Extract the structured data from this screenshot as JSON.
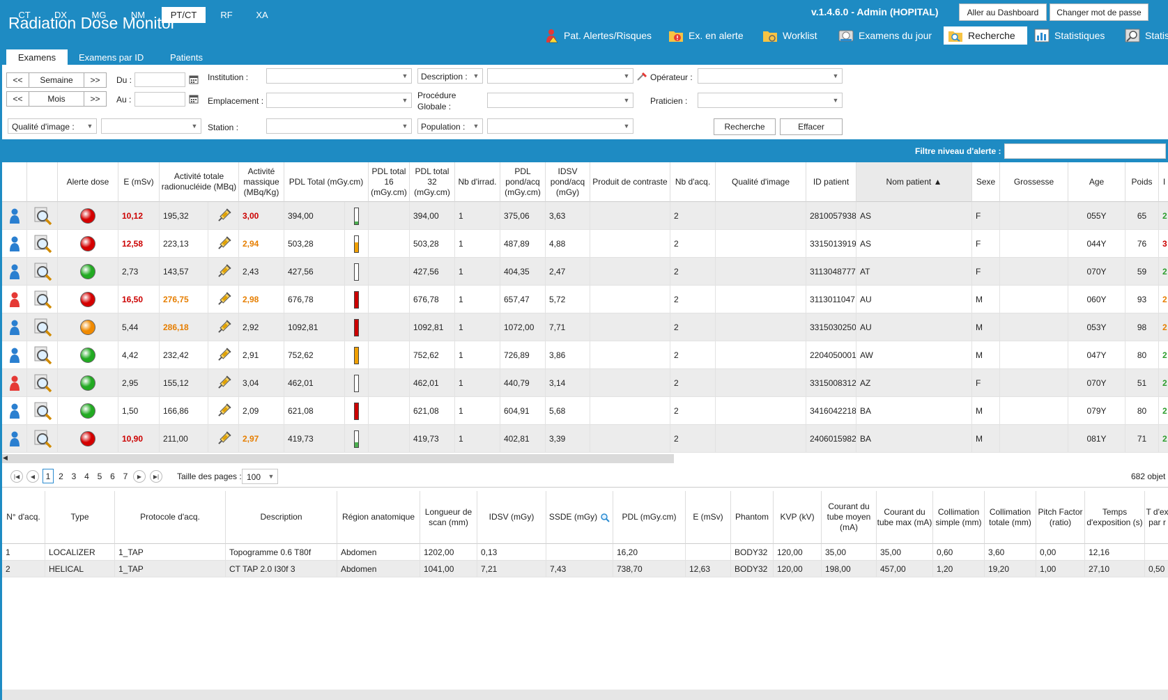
{
  "header": {
    "app_title": "Radiation Dose Monitor",
    "version": "v.1.4.6.0  -   Admin (HOPITAL)",
    "dashboard_button": "Aller au Dashboard",
    "password_button": "Changer mot de passe",
    "nav": [
      {
        "label": "Pat. Alertes/Risques",
        "icon": "patient-alert-icon"
      },
      {
        "label": "Ex. en alerte",
        "icon": "folder-alert-icon"
      },
      {
        "label": "Worklist",
        "icon": "folder-worklist-icon"
      },
      {
        "label": "Examens du jour",
        "icon": "scanner-icon"
      },
      {
        "label": "Recherche",
        "icon": "search-folder-icon",
        "active": true
      },
      {
        "label": "Statistiques",
        "icon": "stats-chart-icon"
      },
      {
        "label": "Statis",
        "icon": "stats-search-icon"
      }
    ]
  },
  "tabs": [
    "Examens",
    "Examens par ID",
    "Patients"
  ],
  "search": {
    "week_prev": "<<",
    "week_label": "Semaine",
    "week_next": ">>",
    "month_prev": "<<",
    "month_label": "Mois",
    "month_next": ">>",
    "du_label": "Du :",
    "au_label": "Au :",
    "institution_label": "Institution :",
    "emplacement_label": "Emplacement :",
    "station_label": "Station :",
    "description_label": "Description :",
    "procedure_label_1": "Procédure",
    "procedure_label_2": "Globale :",
    "population_label": "Population :",
    "operateur_label": "Opérateur :",
    "praticien_label": "Praticien :",
    "qualite_label": "Qualité d'image :",
    "recherche_button": "Recherche",
    "effacer_button": "Effacer"
  },
  "modalities": [
    "CT",
    "DX",
    "MG",
    "NM",
    "PT/CT",
    "RF",
    "XA"
  ],
  "active_modality": "PT/CT",
  "filter_label": "Filtre niveau d'alerte :",
  "grid": {
    "headers": [
      "",
      "",
      "Alerte dose",
      "E (mSv)",
      "Activité totale radionucléide (MBq)",
      "Activité massique (MBq/Kg)",
      "PDL Total (mGy.cm)",
      "PDL total 16 (mGy.cm)",
      "PDL total 32 (mGy.cm)",
      "Nb d'irrad.",
      "PDL pond/acq (mGy.cm)",
      "IDSV pond/acq (mGy)",
      "Produit de contraste",
      "Nb d'acq.",
      "Qualité d'image",
      "ID patient",
      "Nom patient ▲",
      "Sexe",
      "Grossesse",
      "Age",
      "Poids",
      "I"
    ],
    "rows": [
      {
        "patient": "blue",
        "alert": "#d40000",
        "e": "10,12",
        "e_cls": "red",
        "act": "195,32",
        "act_cls": "",
        "mass": "3,00",
        "mass_cls": "red",
        "pdl": "394,00",
        "bar": "#4caf50",
        "bar_fill": 0.15,
        "pdl32": "394,00",
        "irrad": "1",
        "pond": "375,06",
        "idsv": "3,63",
        "acq": "2",
        "id": "2810057938",
        "name": "AS",
        "sex": "F",
        "age": "055Y",
        "weight": "65",
        "extra": "2",
        "extra_cls": "green"
      },
      {
        "patient": "blue",
        "alert": "#d40000",
        "e": "12,58",
        "e_cls": "red",
        "act": "223,13",
        "act_cls": "",
        "mass": "2,94",
        "mass_cls": "org",
        "pdl": "503,28",
        "bar": "#f0a000",
        "bar_fill": 0.6,
        "pdl32": "503,28",
        "irrad": "1",
        "pond": "487,89",
        "idsv": "4,88",
        "acq": "2",
        "id": "3315013919",
        "name": "AS",
        "sex": "F",
        "age": "044Y",
        "weight": "76",
        "extra": "3",
        "extra_cls": "redtxt"
      },
      {
        "patient": "blue",
        "alert": "#22aa22",
        "e": "2,73",
        "e_cls": "",
        "act": "143,57",
        "act_cls": "",
        "mass": "2,43",
        "mass_cls": "",
        "pdl": "427,56",
        "bar": "#ffffff",
        "bar_fill": 0,
        "pdl32": "427,56",
        "irrad": "1",
        "pond": "404,35",
        "idsv": "2,47",
        "acq": "2",
        "id": "3113048777",
        "name": "AT",
        "sex": "F",
        "age": "070Y",
        "weight": "59",
        "extra": "2",
        "extra_cls": "green"
      },
      {
        "patient": "red",
        "alert": "#d40000",
        "e": "16,50",
        "e_cls": "red",
        "act": "276,75",
        "act_cls": "org",
        "mass": "2,98",
        "mass_cls": "org",
        "pdl": "676,78",
        "bar": "#cc0000",
        "bar_fill": 1,
        "pdl32": "676,78",
        "irrad": "1",
        "pond": "657,47",
        "idsv": "5,72",
        "acq": "2",
        "id": "3113011047",
        "name": "AU",
        "sex": "M",
        "age": "060Y",
        "weight": "93",
        "extra": "2",
        "extra_cls": "org"
      },
      {
        "patient": "blue",
        "alert": "#f08a00",
        "e": "5,44",
        "e_cls": "",
        "act": "286,18",
        "act_cls": "org",
        "mass": "2,92",
        "mass_cls": "",
        "pdl": "1092,81",
        "bar": "#cc0000",
        "bar_fill": 1,
        "pdl32": "1092,81",
        "irrad": "1",
        "pond": "1072,00",
        "idsv": "7,71",
        "acq": "2",
        "id": "3315030250",
        "name": "AU",
        "sex": "M",
        "age": "053Y",
        "weight": "98",
        "extra": "2",
        "extra_cls": "org"
      },
      {
        "patient": "blue",
        "alert": "#22aa22",
        "e": "4,42",
        "e_cls": "",
        "act": "232,42",
        "act_cls": "",
        "mass": "2,91",
        "mass_cls": "",
        "pdl": "752,62",
        "bar": "#f0a000",
        "bar_fill": 1,
        "pdl32": "752,62",
        "irrad": "1",
        "pond": "726,89",
        "idsv": "3,86",
        "acq": "2",
        "id": "2204050001",
        "name": "AW",
        "sex": "M",
        "age": "047Y",
        "weight": "80",
        "extra": "2",
        "extra_cls": "green"
      },
      {
        "patient": "red",
        "alert": "#22aa22",
        "e": "2,95",
        "e_cls": "",
        "act": "155,12",
        "act_cls": "",
        "mass": "3,04",
        "mass_cls": "",
        "pdl": "462,01",
        "bar": "#ffffff",
        "bar_fill": 0,
        "pdl32": "462,01",
        "irrad": "1",
        "pond": "440,79",
        "idsv": "3,14",
        "acq": "2",
        "id": "3315008312",
        "name": "AZ",
        "sex": "F",
        "age": "070Y",
        "weight": "51",
        "extra": "2",
        "extra_cls": "green"
      },
      {
        "patient": "blue",
        "alert": "#22aa22",
        "e": "1,50",
        "e_cls": "",
        "act": "166,86",
        "act_cls": "",
        "mass": "2,09",
        "mass_cls": "",
        "pdl": "621,08",
        "bar": "#cc0000",
        "bar_fill": 1,
        "pdl32": "621,08",
        "irrad": "1",
        "pond": "604,91",
        "idsv": "5,68",
        "acq": "2",
        "id": "3416042218",
        "name": "BA",
        "sex": "M",
        "age": "079Y",
        "weight": "80",
        "extra": "2",
        "extra_cls": "green"
      },
      {
        "patient": "blue",
        "alert": "#d40000",
        "e": "10,90",
        "e_cls": "red",
        "act": "211,00",
        "act_cls": "",
        "mass": "2,97",
        "mass_cls": "org",
        "pdl": "419,73",
        "bar": "#4caf50",
        "bar_fill": 0.3,
        "pdl32": "419,73",
        "irrad": "1",
        "pond": "402,81",
        "idsv": "3,39",
        "acq": "2",
        "id": "2406015982",
        "name": "BA",
        "sex": "M",
        "age": "081Y",
        "weight": "71",
        "extra": "2",
        "extra_cls": "green"
      }
    ]
  },
  "pager": {
    "pages": [
      "1",
      "2",
      "3",
      "4",
      "5",
      "6",
      "7"
    ],
    "current": "1",
    "page_size_label": "Taille des pages :",
    "page_size": "100",
    "count": "682 objet"
  },
  "detail": {
    "headers": [
      "N° d'acq.",
      "Type",
      "Protocole d'acq.",
      "Description",
      "Région anatomique",
      "Longueur de scan (mm)",
      "IDSV (mGy)",
      "SSDE (mGy)",
      "PDL (mGy.cm)",
      "E (mSv)",
      "Phantom",
      "KVP (kV)",
      "Courant du tube moyen (mA)",
      "Courant du tube max (mA)",
      "Collimation simple (mm)",
      "Collimation totale (mm)",
      "Pitch Factor (ratio)",
      "Temps d'exposition (s)",
      "T d'ex par r"
    ],
    "rows": [
      [
        "1",
        "LOCALIZER",
        "1_TAP",
        "Topogramme 0.6 T80f",
        "Abdomen",
        "1202,00",
        "0,13",
        "",
        "16,20",
        "",
        "BODY32",
        "120,00",
        "35,00",
        "35,00",
        "0,60",
        "3,60",
        "0,00",
        "12,16",
        ""
      ],
      [
        "2",
        "HELICAL",
        "1_TAP",
        "CT TAP 2.0 I30f 3",
        "Abdomen",
        "1041,00",
        "7,21",
        "7,43",
        "738,70",
        "12,63",
        "BODY32",
        "120,00",
        "198,00",
        "457,00",
        "1,20",
        "19,20",
        "1,00",
        "27,10",
        "0,50"
      ]
    ]
  }
}
